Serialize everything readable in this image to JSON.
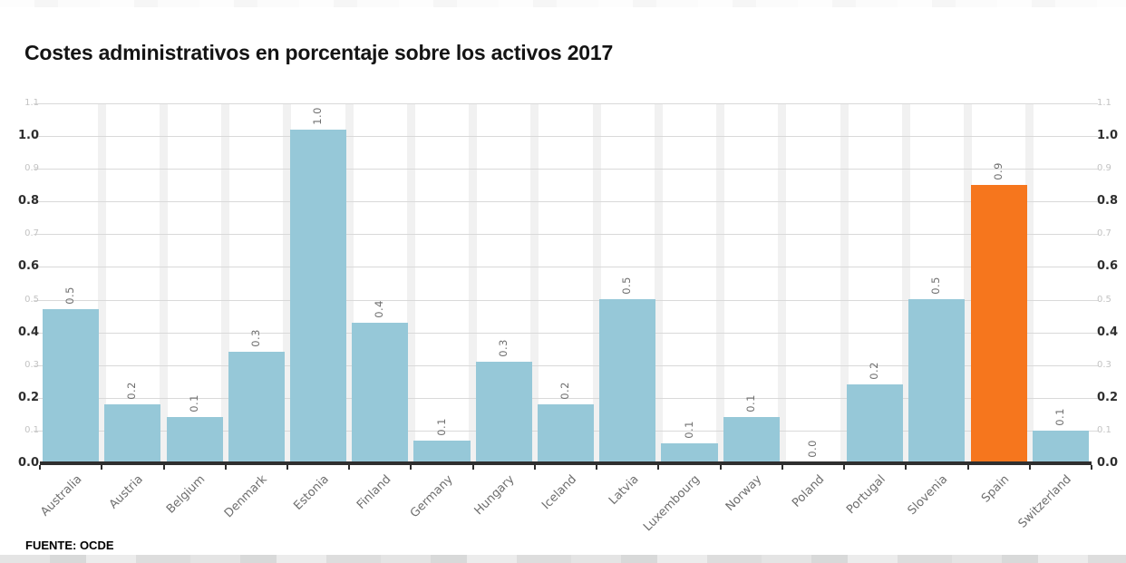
{
  "header": {
    "title": "Costes administrativos en porcentaje sobre los activos 2017"
  },
  "source_label": "FUENTE: OCDE",
  "chart_data": {
    "type": "bar",
    "title": "Costes administrativos en porcentaje sobre los activos 2017",
    "categories": [
      "Australia",
      "Austria",
      "Belgium",
      "Denmark",
      "Estonia",
      "Finland",
      "Germany",
      "Hungary",
      "Iceland",
      "Latvia",
      "Luxembourg",
      "Norway",
      "Poland",
      "Portugal",
      "Slovenia",
      "Spain",
      "Switzerland"
    ],
    "values": [
      0.47,
      0.18,
      0.14,
      0.34,
      1.02,
      0.43,
      0.07,
      0.31,
      0.18,
      0.5,
      0.06,
      0.14,
      0.0,
      0.24,
      0.5,
      0.85,
      0.1
    ],
    "bar_labels": [
      "0.5",
      "0.2",
      "0.1",
      "0.3",
      "1.0",
      "0.4",
      "0.1",
      "0.3",
      "0.2",
      "0.5",
      "0.1",
      "0.1",
      "0.0",
      "0.2",
      "0.5",
      "0.9",
      "0.1"
    ],
    "highlight_category": "Spain",
    "highlight_index": 15,
    "ylim": [
      0,
      1.1
    ],
    "yticks": [
      {
        "value": 0.0,
        "label": "0.0",
        "major": true
      },
      {
        "value": 0.1,
        "label": "0.1",
        "major": false
      },
      {
        "value": 0.2,
        "label": "0.2",
        "major": true
      },
      {
        "value": 0.3,
        "label": "0.3",
        "major": false
      },
      {
        "value": 0.4,
        "label": "0.4",
        "major": true
      },
      {
        "value": 0.5,
        "label": "0.5",
        "major": false
      },
      {
        "value": 0.6,
        "label": "0.6",
        "major": true
      },
      {
        "value": 0.7,
        "label": "0.7",
        "major": false
      },
      {
        "value": 0.8,
        "label": "0.8",
        "major": true
      },
      {
        "value": 0.9,
        "label": "0.9",
        "major": false
      },
      {
        "value": 1.0,
        "label": "1.0",
        "major": true
      },
      {
        "value": 1.1,
        "label": "1.1",
        "major": false
      }
    ],
    "grid": true,
    "legend": "none",
    "value_label_rotation": -90,
    "xlabel_rotation": -45,
    "colors": {
      "bar": "#96c8d8",
      "highlight": "#f6761d",
      "grid": "#d9d9d9",
      "axis": "#2f2f2f",
      "stripe": "#f1f1f1",
      "bar_label": "#6e6e6e",
      "x_label": "#6e6e6e",
      "y_major": "#2e2e2e",
      "y_minor": "#c3c3c3"
    },
    "source": "FUENTE: OCDE"
  }
}
